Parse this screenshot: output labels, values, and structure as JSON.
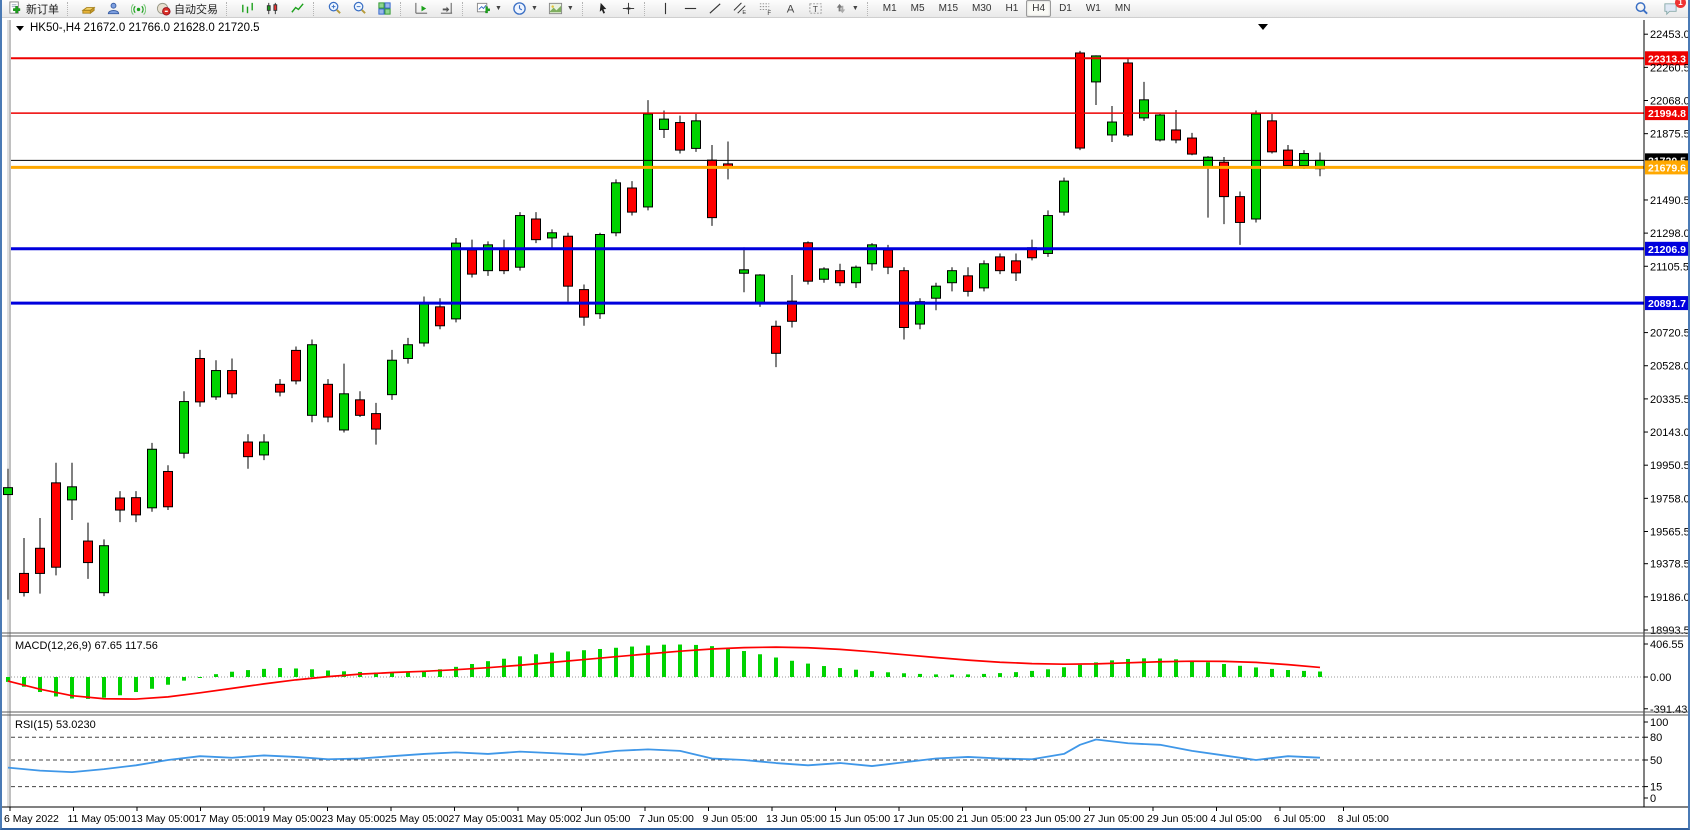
{
  "toolbar": {
    "new_order_label": "新订单",
    "autotrade_label": "自动交易",
    "items": [
      "new-order-button",
      "sep",
      "market-watch-icon",
      "navigator-icon",
      "signal-icon",
      "autotrade-button",
      "sep",
      "bar-chart-icon",
      "candle-chart-icon",
      "line-chart-icon",
      "sep",
      "zoom-in-icon",
      "zoom-out-icon",
      "tile-windows-icon",
      "sep",
      "auto-scroll-icon",
      "chart-shift-icon",
      "sep",
      "new-chart-dropdown",
      "period-dropdown",
      "template-dropdown",
      "sep",
      "cursor-icon",
      "crosshair-icon",
      "sep",
      "vline-icon",
      "hline-icon",
      "trendline-icon",
      "channel-icon",
      "fibonacci-icon",
      "text-icon",
      "label-icon",
      "shapes-dropdown",
      "sep",
      "timeframes",
      "spacer",
      "search-icon",
      "chat-icon"
    ],
    "timeframes": [
      "M1",
      "M5",
      "M15",
      "M30",
      "H1",
      "H4",
      "D1",
      "W1",
      "MN"
    ],
    "active_timeframe": "H4",
    "chat_badge": "1"
  },
  "chart": {
    "title_symbol": "HK50-,H4",
    "title_ohlc": "21672.0 21766.0 21628.0 21720.5",
    "price_ticks": [
      "22453.0",
      "22260.5",
      "22068.0",
      "21875.5",
      "21490.5",
      "21298.0",
      "21105.5",
      "20720.5",
      "20528.0",
      "20335.5",
      "20143.0",
      "19950.5",
      "19758.0",
      "19565.5",
      "19378.5",
      "19186.0",
      "18993.5"
    ],
    "macd_label": "MACD(12,26,9) 67.65 117.56",
    "macd_ticks": [
      "406.55",
      "0.00",
      "-391.43"
    ],
    "rsi_label": "RSI(15) 53.0230",
    "rsi_ticks": [
      "100",
      "80",
      "50",
      "15",
      "0"
    ],
    "time_labels": [
      "6 May 2022",
      "11 May 05:00",
      "13 May 05:00",
      "17 May 05:00",
      "19 May 05:00",
      "23 May 05:00",
      "25 May 05:00",
      "27 May 05:00",
      "31 May 05:00",
      "2 Jun 05:00",
      "7 Jun 05:00",
      "9 Jun 05:00",
      "13 Jun 05:00",
      "15 Jun 05:00",
      "17 Jun 05:00",
      "21 Jun 05:00",
      "23 Jun 05:00",
      "27 Jun 05:00",
      "29 Jun 05:00",
      "4 Jul 05:00",
      "6 Jul 05:00",
      "8 Jul 05:00"
    ]
  },
  "chart_data": {
    "type": "candlestick",
    "symbol": "HK50-",
    "timeframe": "H4",
    "current_bar": {
      "open": 21672.0,
      "high": 21766.0,
      "low": 21628.0,
      "close": 21720.5
    },
    "up_color": "#00d300",
    "down_color": "#fe0000",
    "price_axis_range": [
      18993.5,
      22460.0
    ],
    "levels": [
      {
        "label": "22313.3",
        "price": 22313.3,
        "color": "#ee0000",
        "width": 2
      },
      {
        "label": "21994.8",
        "price": 21994.8,
        "color": "#ee0000",
        "width": 1.5
      },
      {
        "label": "21720.5",
        "price": 21720.5,
        "color": "#000000",
        "width": 1
      },
      {
        "label": "21679.6",
        "price": 21679.6,
        "color": "#ffa800",
        "width": 3
      },
      {
        "label": "21206.9",
        "price": 21206.9,
        "color": "#0000dd",
        "width": 3
      },
      {
        "label": "20891.7",
        "price": 20891.7,
        "color": "#0000dd",
        "width": 3
      }
    ],
    "ohlc": [
      [
        19780,
        19930,
        19170,
        19820
      ],
      [
        19322,
        19528,
        19188,
        19211
      ],
      [
        19468,
        19644,
        19205,
        19322
      ],
      [
        19848,
        19965,
        19311,
        19358
      ],
      [
        19749,
        19965,
        19632,
        19825
      ],
      [
        19510,
        19617,
        19290,
        19385
      ],
      [
        19210,
        19520,
        19190,
        19483
      ],
      [
        19760,
        19800,
        19620,
        19690
      ],
      [
        19762,
        19800,
        19620,
        19662
      ],
      [
        19703,
        20080,
        19680,
        20043
      ],
      [
        19914,
        19950,
        19690,
        19709
      ],
      [
        20020,
        20380,
        19990,
        20320
      ],
      [
        20570,
        20620,
        20290,
        20318
      ],
      [
        20347,
        20560,
        20330,
        20500
      ],
      [
        20500,
        20570,
        20340,
        20365
      ],
      [
        20085,
        20130,
        19930,
        20000
      ],
      [
        20010,
        20130,
        19980,
        20085
      ],
      [
        20420,
        20450,
        20350,
        20375
      ],
      [
        20617,
        20640,
        20420,
        20440
      ],
      [
        20240,
        20680,
        20200,
        20650
      ],
      [
        20420,
        20450,
        20200,
        20230
      ],
      [
        20155,
        20540,
        20140,
        20365
      ],
      [
        20330,
        20380,
        20230,
        20240
      ],
      [
        20250,
        20312,
        20070,
        20160
      ],
      [
        20360,
        20620,
        20330,
        20560
      ],
      [
        20570,
        20690,
        20540,
        20650
      ],
      [
        20660,
        20930,
        20640,
        20890
      ],
      [
        20870,
        20920,
        20740,
        20760
      ],
      [
        20800,
        21270,
        20780,
        21240
      ],
      [
        21200,
        21260,
        21040,
        21060
      ],
      [
        21080,
        21250,
        21050,
        21230
      ],
      [
        21210,
        21260,
        21060,
        21080
      ],
      [
        21100,
        21420,
        21080,
        21400
      ],
      [
        21380,
        21420,
        21240,
        21260
      ],
      [
        21270,
        21320,
        21200,
        21300
      ],
      [
        21280,
        21300,
        20900,
        20990
      ],
      [
        20970,
        21000,
        20760,
        20810
      ],
      [
        20830,
        21300,
        20800,
        21290
      ],
      [
        21300,
        21610,
        21280,
        21590
      ],
      [
        21560,
        21600,
        21400,
        21420
      ],
      [
        21450,
        22070,
        21430,
        21990
      ],
      [
        21900,
        22010,
        21850,
        21960
      ],
      [
        21940,
        21980,
        21760,
        21780
      ],
      [
        21790,
        21990,
        21770,
        21950
      ],
      [
        21722,
        21810,
        21340,
        21388
      ],
      [
        21700,
        21830,
        21610,
        21680
      ],
      [
        21065,
        21215,
        20955,
        21085
      ],
      [
        20890,
        21060,
        20870,
        21055
      ],
      [
        20757,
        20790,
        20520,
        20600
      ],
      [
        20903,
        21055,
        20750,
        20786
      ],
      [
        21242,
        21250,
        21000,
        21019
      ],
      [
        21030,
        21100,
        21010,
        21090
      ],
      [
        21080,
        21120,
        20990,
        21010
      ],
      [
        21010,
        21110,
        20980,
        21100
      ],
      [
        21120,
        21240,
        21080,
        21230
      ],
      [
        21200,
        21230,
        21060,
        21100
      ],
      [
        21080,
        21100,
        20680,
        20750
      ],
      [
        20770,
        20920,
        20740,
        20900
      ],
      [
        20920,
        21010,
        20850,
        20990
      ],
      [
        21010,
        21100,
        20960,
        21080
      ],
      [
        21050,
        21100,
        20930,
        20960
      ],
      [
        20980,
        21140,
        20960,
        21120
      ],
      [
        21160,
        21180,
        21060,
        21080
      ],
      [
        21137,
        21180,
        21020,
        21067
      ],
      [
        21213,
        21260,
        21140,
        21155
      ],
      [
        21180,
        21430,
        21160,
        21400
      ],
      [
        21420,
        21620,
        21400,
        21600
      ],
      [
        22344,
        22356,
        21780,
        21792
      ],
      [
        22176,
        22330,
        22042,
        22327
      ],
      [
        21868,
        22036,
        21827,
        21943
      ],
      [
        22286,
        22315,
        21856,
        21868
      ],
      [
        21967,
        22176,
        21950,
        22072
      ],
      [
        21839,
        21990,
        21830,
        21984
      ],
      [
        21897,
        22013,
        21820,
        21839
      ],
      [
        21850,
        21880,
        21750,
        21757
      ],
      [
        21681,
        21745,
        21388,
        21739
      ],
      [
        21710,
        21740,
        21350,
        21510
      ],
      [
        21510,
        21540,
        21230,
        21360
      ],
      [
        21380,
        22010,
        21360,
        21990
      ],
      [
        21950,
        21990,
        21760,
        21770
      ],
      [
        21780,
        21810,
        21680,
        21690
      ],
      [
        21690,
        21780,
        21670,
        21760
      ],
      [
        21672,
        21766,
        21628,
        21720.5
      ]
    ],
    "macd": {
      "params": [
        12,
        26,
        9
      ],
      "current_macd": 67.65,
      "current_signal": 117.56,
      "axis_range": [
        -450,
        450
      ],
      "histogram": [
        -60,
        -120,
        -185,
        -240,
        -265,
        -270,
        -255,
        -225,
        -185,
        -145,
        -95,
        -45,
        0,
        35,
        65,
        85,
        100,
        110,
        105,
        95,
        80,
        70,
        62,
        55,
        50,
        55,
        70,
        95,
        125,
        160,
        195,
        225,
        255,
        280,
        300,
        315,
        330,
        345,
        360,
        375,
        388,
        398,
        400,
        395,
        380,
        355,
        320,
        280,
        240,
        200,
        165,
        135,
        110,
        90,
        72,
        58,
        46,
        38,
        32,
        30,
        32,
        38,
        48,
        60,
        75,
        95,
        120,
        150,
        180,
        205,
        222,
        230,
        228,
        218,
        202,
        182,
        160,
        138,
        118,
        100,
        86,
        75,
        67.65
      ],
      "signal": [
        [
          0,
          -50
        ],
        [
          2,
          -150
        ],
        [
          4,
          -230
        ],
        [
          6,
          -268
        ],
        [
          8,
          -272
        ],
        [
          10,
          -245
        ],
        [
          12,
          -195
        ],
        [
          14,
          -140
        ],
        [
          16,
          -85
        ],
        [
          18,
          -35
        ],
        [
          20,
          5
        ],
        [
          22,
          35
        ],
        [
          24,
          55
        ],
        [
          26,
          70
        ],
        [
          28,
          90
        ],
        [
          30,
          115
        ],
        [
          32,
          145
        ],
        [
          34,
          180
        ],
        [
          36,
          215
        ],
        [
          38,
          250
        ],
        [
          40,
          285
        ],
        [
          42,
          318
        ],
        [
          44,
          345
        ],
        [
          46,
          362
        ],
        [
          48,
          368
        ],
        [
          50,
          360
        ],
        [
          52,
          340
        ],
        [
          54,
          310
        ],
        [
          56,
          275
        ],
        [
          58,
          240
        ],
        [
          60,
          208
        ],
        [
          62,
          182
        ],
        [
          64,
          165
        ],
        [
          66,
          158
        ],
        [
          68,
          162
        ],
        [
          70,
          175
        ],
        [
          72,
          188
        ],
        [
          74,
          195
        ],
        [
          76,
          192
        ],
        [
          78,
          180
        ],
        [
          80,
          152
        ],
        [
          82,
          117.56
        ]
      ]
    },
    "rsi": {
      "period": 15,
      "current": 53.023,
      "levels": [
        80,
        50,
        15
      ],
      "points": [
        [
          0,
          40
        ],
        [
          2,
          36
        ],
        [
          4,
          34
        ],
        [
          6,
          38
        ],
        [
          8,
          43
        ],
        [
          10,
          50
        ],
        [
          12,
          55
        ],
        [
          14,
          53
        ],
        [
          16,
          56
        ],
        [
          18,
          54
        ],
        [
          20,
          51
        ],
        [
          22,
          52
        ],
        [
          24,
          55
        ],
        [
          26,
          58
        ],
        [
          28,
          60
        ],
        [
          30,
          58
        ],
        [
          32,
          61
        ],
        [
          34,
          59
        ],
        [
          36,
          57
        ],
        [
          38,
          62
        ],
        [
          40,
          64
        ],
        [
          42,
          62
        ],
        [
          44,
          52
        ],
        [
          46,
          50
        ],
        [
          48,
          46
        ],
        [
          50,
          43
        ],
        [
          52,
          46
        ],
        [
          54,
          42
        ],
        [
          56,
          47
        ],
        [
          58,
          52
        ],
        [
          60,
          54
        ],
        [
          62,
          52
        ],
        [
          64,
          51
        ],
        [
          66,
          58
        ],
        [
          67,
          70
        ],
        [
          68,
          77
        ],
        [
          70,
          72
        ],
        [
          72,
          70
        ],
        [
          74,
          62
        ],
        [
          76,
          56
        ],
        [
          78,
          50
        ],
        [
          80,
          55
        ],
        [
          82,
          53.02
        ]
      ]
    }
  }
}
